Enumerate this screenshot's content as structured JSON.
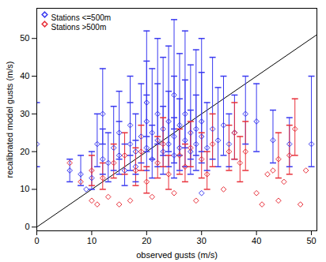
{
  "chart_data": {
    "type": "scatter",
    "x_label": "observed gusts (m/s)",
    "y_label": "recalibrated model gusts (m/s)",
    "xlim": [
      0,
      51
    ],
    "ylim": [
      -1,
      58
    ],
    "xticks": [
      0,
      10,
      20,
      30,
      40,
      50
    ],
    "yticks": [
      0,
      10,
      20,
      30,
      40,
      50
    ],
    "grid": false,
    "legend": "top-left",
    "marker": "diamond",
    "diagonal": {
      "x": [
        0,
        51
      ],
      "y": [
        0,
        51
      ],
      "color": "#000000"
    },
    "series": [
      {
        "name": "Stations <=500m",
        "color": "#3a3af0",
        "x": [
          6,
          8,
          9,
          10,
          11,
          12,
          13,
          14,
          15,
          15,
          16,
          17,
          17,
          18,
          18,
          19,
          20,
          20,
          21,
          21,
          22,
          22,
          23,
          23,
          24,
          24,
          25,
          25,
          26,
          26,
          27,
          27,
          28,
          28,
          29,
          29,
          30,
          30,
          31,
          32,
          33,
          34,
          35,
          36,
          38,
          40,
          43,
          46,
          50,
          30,
          12,
          0,
          20,
          25
        ],
        "values": [
          15,
          14,
          10,
          13,
          22,
          18,
          17,
          21,
          19,
          25,
          15,
          22,
          27,
          20,
          16,
          24,
          21,
          28,
          18,
          25,
          23,
          30,
          20,
          26,
          22,
          28,
          19,
          24,
          27,
          21,
          23,
          30,
          25,
          20,
          26,
          22,
          24,
          28,
          21,
          26,
          23,
          27,
          22,
          25,
          30,
          28,
          23,
          22,
          22,
          9,
          30,
          22,
          33,
          35
        ],
        "error_low": [
          12,
          11,
          null,
          10,
          16,
          14,
          12,
          15,
          14,
          18,
          11,
          15,
          19,
          14,
          12,
          17,
          15,
          20,
          13,
          18,
          16,
          22,
          14,
          19,
          16,
          20,
          13,
          17,
          19,
          15,
          16,
          21,
          18,
          14,
          19,
          15,
          17,
          20,
          15,
          18,
          16,
          19,
          16,
          18,
          22,
          20,
          17,
          16,
          16,
          null,
          22,
          16,
          24,
          26
        ],
        "error_high": [
          18,
          19,
          null,
          20,
          30,
          26,
          25,
          32,
          28,
          36,
          22,
          33,
          40,
          30,
          23,
          38,
          35,
          44,
          27,
          42,
          38,
          50,
          32,
          45,
          36,
          48,
          29,
          40,
          46,
          34,
          39,
          52,
          43,
          31,
          47,
          35,
          41,
          50,
          33,
          45,
          37,
          40,
          30,
          35,
          40,
          38,
          31,
          29,
          40,
          null,
          42,
          33,
          52,
          55
        ]
      },
      {
        "name": "Stations >500m",
        "color": "#e8303a",
        "x": [
          6,
          8,
          10,
          10,
          11,
          12,
          13,
          14,
          15,
          16,
          17,
          18,
          19,
          20,
          21,
          22,
          23,
          24,
          25,
          26,
          27,
          28,
          29,
          30,
          31,
          32,
          34,
          35,
          36,
          37,
          38,
          40,
          41,
          42,
          43,
          44,
          45,
          46,
          47,
          48,
          49,
          44
        ],
        "values": [
          17,
          12,
          7,
          15,
          6,
          13,
          8,
          17,
          6,
          19,
          7,
          15,
          20,
          12,
          8,
          17,
          22,
          14,
          9,
          19,
          16,
          21,
          7,
          18,
          14,
          22,
          10,
          20,
          25,
          17,
          20,
          9,
          6,
          14,
          15,
          18,
          12,
          19,
          26,
          6,
          15,
          7
        ],
        "error_low": [
          null,
          null,
          null,
          11,
          null,
          10,
          null,
          13,
          null,
          14,
          null,
          11,
          15,
          9,
          null,
          13,
          16,
          10,
          null,
          14,
          12,
          16,
          null,
          13,
          10,
          16,
          null,
          15,
          18,
          12,
          15,
          null,
          null,
          null,
          null,
          13,
          null,
          14,
          19,
          null,
          null,
          null
        ],
        "error_high": [
          null,
          null,
          null,
          19,
          null,
          17,
          null,
          22,
          null,
          25,
          null,
          21,
          27,
          16,
          null,
          24,
          29,
          19,
          null,
          26,
          22,
          28,
          null,
          25,
          20,
          30,
          null,
          27,
          33,
          24,
          28,
          null,
          null,
          null,
          null,
          25,
          null,
          27,
          34,
          null,
          null,
          null
        ]
      }
    ]
  }
}
